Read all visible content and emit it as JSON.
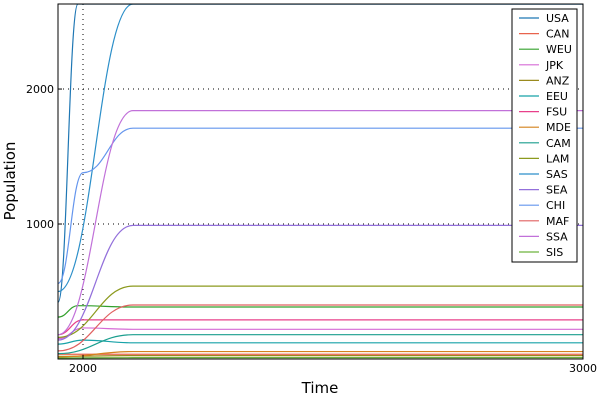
{
  "chart_data": {
    "type": "line",
    "title": "",
    "xlabel": "Time",
    "ylabel": "Population",
    "xlim": [
      1950,
      3000
    ],
    "ylim": [
      0,
      2630
    ],
    "x_ticks": [
      2000,
      3000
    ],
    "x_tick_labels": [
      "2000",
      "3000"
    ],
    "y_ticks": [
      1000,
      2000
    ],
    "y_tick_labels": [
      "1000",
      "2000"
    ],
    "grid": "dotted at major ticks",
    "legend": {
      "position": "top-right"
    },
    "series": [
      {
        "name": "USA",
        "color": "#1f77b4",
        "values": [
          [
            1950,
            420
          ],
          [
            1990,
            2630
          ],
          [
            3000,
            2630
          ]
        ]
      },
      {
        "name": "CAN",
        "color": "#e8634d",
        "values": [
          [
            1950,
            35
          ],
          [
            2100,
            35
          ],
          [
            3000,
            35
          ]
        ]
      },
      {
        "name": "WEU",
        "color": "#33a02c",
        "values": [
          [
            1950,
            310
          ],
          [
            1990,
            395
          ],
          [
            2100,
            385
          ],
          [
            3000,
            385
          ]
        ]
      },
      {
        "name": "JPK",
        "color": "#d66bd6",
        "values": [
          [
            1950,
            150
          ],
          [
            2000,
            230
          ],
          [
            2100,
            220
          ],
          [
            3000,
            220
          ]
        ]
      },
      {
        "name": "ANZ",
        "color": "#9a8a1e",
        "values": [
          [
            1950,
            20
          ],
          [
            2100,
            25
          ],
          [
            3000,
            25
          ]
        ]
      },
      {
        "name": "EEU",
        "color": "#17a2a8",
        "values": [
          [
            1950,
            110
          ],
          [
            2000,
            140
          ],
          [
            2100,
            120
          ],
          [
            3000,
            120
          ]
        ]
      },
      {
        "name": "FSU",
        "color": "#e8408a",
        "values": [
          [
            1950,
            180
          ],
          [
            2000,
            290
          ],
          [
            2100,
            290
          ],
          [
            3000,
            290
          ]
        ]
      },
      {
        "name": "MDE",
        "color": "#d4821c",
        "values": [
          [
            1950,
            15
          ],
          [
            2100,
            55
          ],
          [
            3000,
            55
          ]
        ]
      },
      {
        "name": "CAM",
        "color": "#1a9e8e",
        "values": [
          [
            1950,
            40
          ],
          [
            2100,
            180
          ],
          [
            3000,
            180
          ]
        ]
      },
      {
        "name": "LAM",
        "color": "#8c9a1e",
        "values": [
          [
            1950,
            160
          ],
          [
            2100,
            540
          ],
          [
            3000,
            540
          ]
        ]
      },
      {
        "name": "SAS",
        "color": "#2c8fc9",
        "values": [
          [
            1950,
            500
          ],
          [
            2100,
            2630
          ],
          [
            3000,
            2630
          ]
        ]
      },
      {
        "name": "SEA",
        "color": "#9370db",
        "values": [
          [
            1950,
            140
          ],
          [
            2100,
            990
          ],
          [
            3000,
            990
          ]
        ]
      },
      {
        "name": "CHI",
        "color": "#6495ed",
        "values": [
          [
            1950,
            560
          ],
          [
            2000,
            1380
          ],
          [
            2100,
            1710
          ],
          [
            3000,
            1710
          ]
        ]
      },
      {
        "name": "MAF",
        "color": "#e06060",
        "values": [
          [
            1950,
            60
          ],
          [
            2100,
            400
          ],
          [
            3000,
            400
          ]
        ]
      },
      {
        "name": "SSA",
        "color": "#c171d9",
        "values": [
          [
            1950,
            180
          ],
          [
            2100,
            1840
          ],
          [
            3000,
            1840
          ]
        ]
      },
      {
        "name": "SIS",
        "color": "#6db33f",
        "values": [
          [
            1950,
            8
          ],
          [
            2100,
            10
          ],
          [
            3000,
            10
          ]
        ]
      }
    ]
  }
}
